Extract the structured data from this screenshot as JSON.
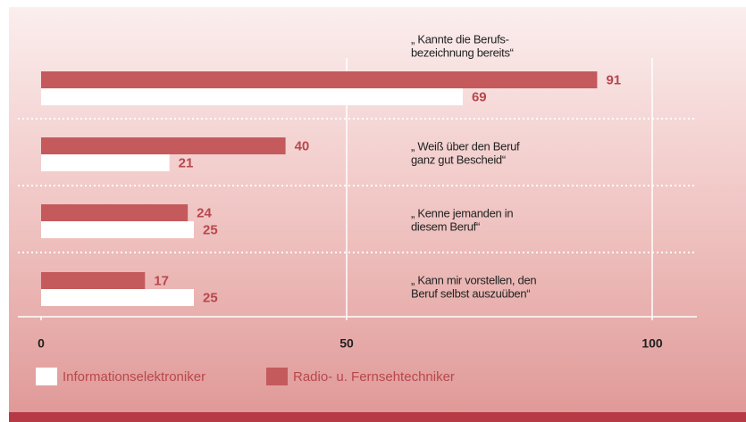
{
  "chart_data": {
    "type": "hbar",
    "categories": [
      [
        "„ Kannte die Berufs-",
        "bezeichnung bereits“"
      ],
      [
        "„ Weiß über den Beruf",
        "ganz gut Bescheid“"
      ],
      [
        "„ Kenne jemanden in",
        "diesem Beruf“"
      ],
      [
        "„ Kann mir vorstellen, den",
        "Beruf selbst auszuüben“"
      ]
    ],
    "series": [
      {
        "name": "Informationselektroniker",
        "color": "#ffffff",
        "values": [
          69,
          21,
          25,
          25
        ]
      },
      {
        "name": "Radio- u. Fernsehtechniker",
        "color": "#c45a5c",
        "values": [
          91,
          40,
          24,
          17
        ]
      }
    ],
    "xlim": [
      0,
      100
    ],
    "xticks": [
      0,
      50,
      100
    ],
    "grid": true,
    "legend": "bottom"
  }
}
